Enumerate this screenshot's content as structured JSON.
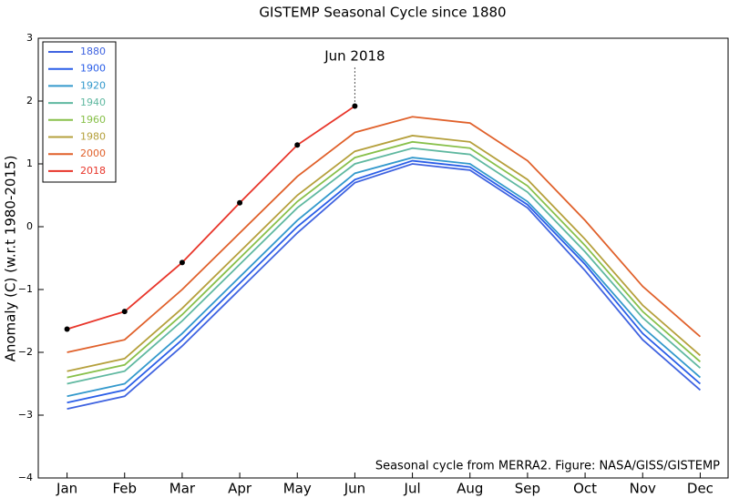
{
  "chart_data": {
    "type": "line",
    "title": "GISTEMP Seasonal Cycle since 1880",
    "y_label": "Anomaly (C) (w.r.t 1980-2015)",
    "annotation": "Jun 2018",
    "note": "Seasonal cycle from MERRA2. Figure: NASA/GISS/GISTEMP",
    "categories": [
      "Jan",
      "Feb",
      "Mar",
      "Apr",
      "May",
      "Jun",
      "Jul",
      "Aug",
      "Sep",
      "Oct",
      "Nov",
      "Dec"
    ],
    "ylim": [
      -4,
      3
    ],
    "yticks": [
      {
        "value": -4,
        "label": "−4"
      },
      {
        "value": -3,
        "label": "−3"
      },
      {
        "value": -2,
        "label": "−2"
      },
      {
        "value": -1,
        "label": "−1"
      },
      0,
      1,
      2,
      3
    ],
    "legend": "upper left",
    "series": [
      {
        "name": "1880",
        "color": "#3f63e0",
        "values": [
          -2.9,
          -2.7,
          -1.9,
          -1.0,
          -0.1,
          0.7,
          1.0,
          0.9,
          0.3,
          -0.7,
          -1.8,
          -2.6
        ]
      },
      {
        "name": "1900",
        "color": "#2a5ee8",
        "values": [
          -2.8,
          -2.6,
          -1.8,
          -0.9,
          0.0,
          0.75,
          1.05,
          0.95,
          0.35,
          -0.6,
          -1.7,
          -2.5
        ]
      },
      {
        "name": "1920",
        "color": "#3399cc",
        "values": [
          -2.7,
          -2.5,
          -1.7,
          -0.8,
          0.1,
          0.85,
          1.1,
          1.0,
          0.4,
          -0.55,
          -1.6,
          -2.4
        ]
      },
      {
        "name": "1940",
        "color": "#5fb8a0",
        "values": [
          -2.5,
          -2.3,
          -1.5,
          -0.6,
          0.3,
          1.0,
          1.25,
          1.15,
          0.55,
          -0.4,
          -1.45,
          -2.25
        ]
      },
      {
        "name": "1960",
        "color": "#88c04a",
        "values": [
          -2.4,
          -2.2,
          -1.4,
          -0.5,
          0.4,
          1.1,
          1.35,
          1.25,
          0.65,
          -0.3,
          -1.35,
          -2.15
        ]
      },
      {
        "name": "1980",
        "color": "#b5a03c",
        "values": [
          -2.3,
          -2.1,
          -1.3,
          -0.4,
          0.5,
          1.2,
          1.45,
          1.35,
          0.75,
          -0.2,
          -1.25,
          -2.05
        ]
      },
      {
        "name": "2000",
        "color": "#e0602a",
        "values": [
          -2.0,
          -1.8,
          -1.0,
          -0.1,
          0.8,
          1.5,
          1.75,
          1.65,
          1.05,
          0.1,
          -0.95,
          -1.75
        ]
      },
      {
        "name": "2018",
        "color": "#e8352a",
        "values": [
          -1.63,
          -1.35,
          -0.57,
          0.38,
          1.3,
          1.92,
          null,
          null,
          null,
          null,
          null,
          null
        ]
      }
    ]
  }
}
